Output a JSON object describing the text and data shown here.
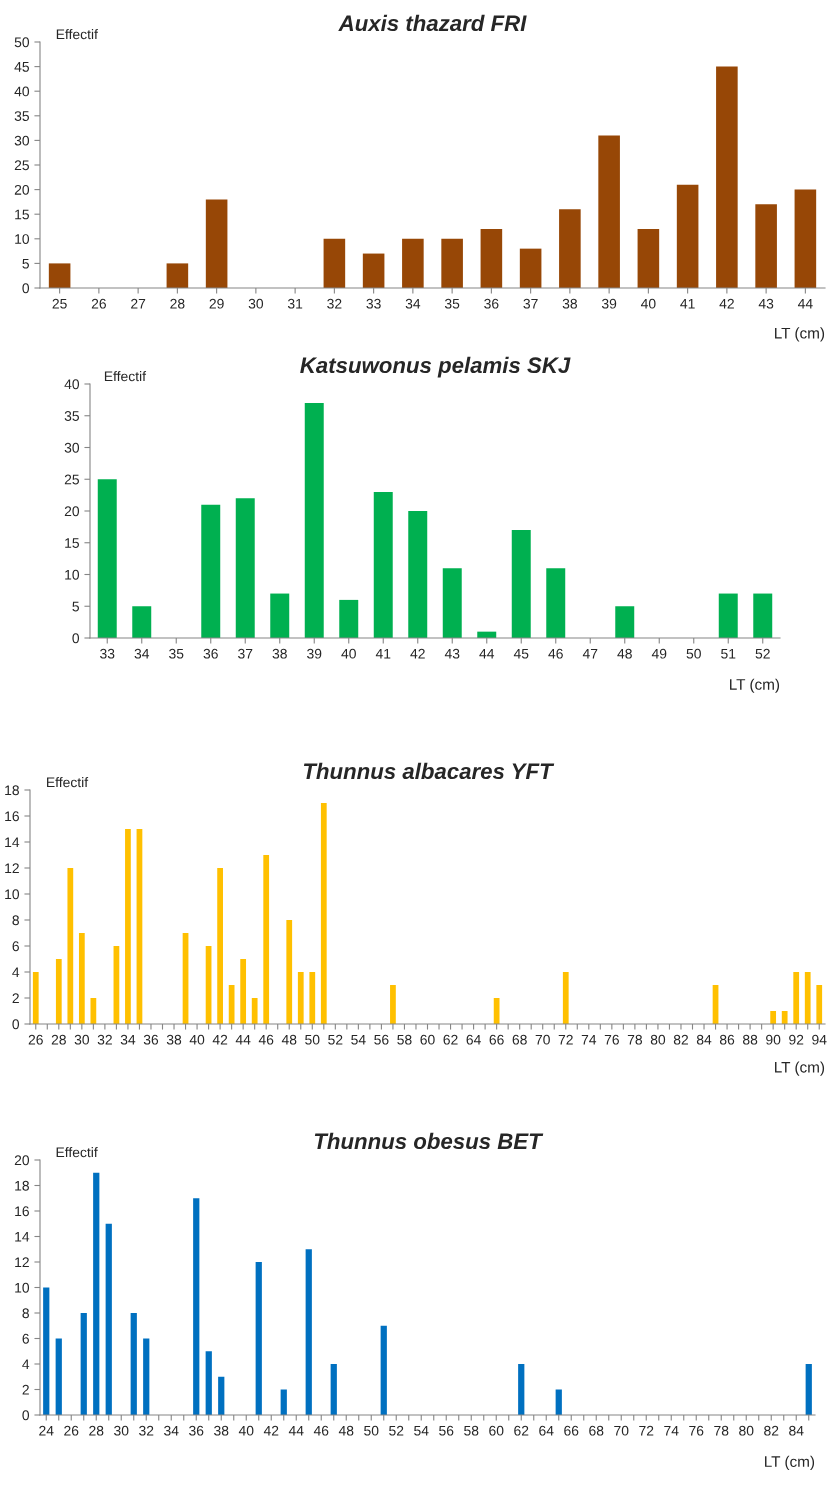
{
  "chart_data": [
    {
      "type": "bar",
      "title": "Auxis thazard FRI",
      "xlabel": "LT (cm)",
      "ylabel": "Effectif",
      "color": "#974706",
      "categories": [
        "25",
        "26",
        "27",
        "28",
        "29",
        "30",
        "31",
        "32",
        "33",
        "34",
        "35",
        "36",
        "37",
        "38",
        "39",
        "40",
        "41",
        "42",
        "43",
        "44"
      ],
      "values": [
        5,
        0,
        0,
        5,
        18,
        0,
        0,
        10,
        7,
        10,
        10,
        12,
        8,
        16,
        31,
        12,
        21,
        45,
        17,
        20
      ],
      "ylim": [
        0,
        50
      ],
      "yticks": [
        0,
        5,
        10,
        15,
        20,
        25,
        30,
        35,
        40,
        45,
        50
      ],
      "grid": false,
      "legend": false
    },
    {
      "type": "bar",
      "title": "Katsuwonus pelamis SKJ",
      "xlabel": "LT (cm)",
      "ylabel": "Effectif",
      "color": "#00b050",
      "categories": [
        "33",
        "34",
        "35",
        "36",
        "37",
        "38",
        "39",
        "40",
        "41",
        "42",
        "43",
        "44",
        "45",
        "46",
        "47",
        "48",
        "49",
        "50",
        "51",
        "52"
      ],
      "values": [
        25,
        5,
        0,
        21,
        22,
        7,
        37,
        6,
        23,
        20,
        11,
        1,
        17,
        11,
        0,
        5,
        0,
        0,
        7,
        7
      ],
      "ylim": [
        0,
        40
      ],
      "yticks": [
        0,
        5,
        10,
        15,
        20,
        25,
        30,
        35,
        40
      ],
      "grid": false,
      "legend": false
    },
    {
      "type": "bar",
      "title": "Thunnus albacares YFT",
      "xlabel": "LT (cm)",
      "ylabel": "Effectif",
      "color": "#ffc000",
      "categories": [
        "26",
        null,
        "28",
        null,
        "30",
        null,
        "32",
        null,
        "34",
        null,
        "36",
        null,
        "38",
        null,
        "40",
        null,
        "42",
        null,
        "44",
        null,
        "46",
        null,
        "48",
        null,
        "50",
        null,
        "52",
        null,
        "54",
        null,
        "56",
        null,
        "58",
        null,
        "60",
        null,
        "62",
        null,
        "64",
        null,
        "66",
        null,
        "68",
        null,
        "70",
        null,
        "72",
        null,
        "74",
        null,
        "76",
        null,
        "78",
        null,
        "80",
        null,
        "82",
        null,
        "84",
        null,
        "86",
        null,
        "88",
        null,
        "90",
        null,
        "92",
        null,
        "94"
      ],
      "values": [
        4,
        0,
        5,
        12,
        7,
        2,
        0,
        6,
        15,
        15,
        0,
        0,
        0,
        7,
        0,
        6,
        12,
        3,
        5,
        2,
        13,
        0,
        8,
        4,
        4,
        17,
        0,
        0,
        0,
        0,
        0,
        3,
        0,
        0,
        0,
        0,
        0,
        0,
        0,
        0,
        2,
        0,
        0,
        0,
        0,
        0,
        4,
        0,
        0,
        0,
        0,
        0,
        0,
        0,
        0,
        0,
        0,
        0,
        0,
        3,
        0,
        0,
        0,
        0,
        1,
        1,
        4,
        4,
        3
      ],
      "ylim": [
        0,
        18
      ],
      "yticks": [
        0,
        2,
        4,
        6,
        8,
        10,
        12,
        14,
        16,
        18
      ],
      "grid": false,
      "legend": false
    },
    {
      "type": "bar",
      "title": "Thunnus obesus BET",
      "xlabel": "LT (cm)",
      "ylabel": "Effectif",
      "color": "#0070c0",
      "categories": [
        "24",
        null,
        "26",
        null,
        "28",
        null,
        "30",
        null,
        "32",
        null,
        "34",
        null,
        "36",
        null,
        "38",
        null,
        "40",
        null,
        "42",
        null,
        "44",
        null,
        "46",
        null,
        "48",
        null,
        "50",
        null,
        "52",
        null,
        "54",
        null,
        "56",
        null,
        "58",
        null,
        "60",
        null,
        "62",
        null,
        "64",
        null,
        "66",
        null,
        "68",
        null,
        "70",
        null,
        "72",
        null,
        "74",
        null,
        "76",
        null,
        "78",
        null,
        "80",
        null,
        "82",
        null,
        "84",
        null
      ],
      "values": [
        10,
        6,
        0,
        8,
        19,
        15,
        0,
        8,
        6,
        0,
        0,
        0,
        17,
        5,
        3,
        0,
        0,
        12,
        0,
        2,
        0,
        13,
        0,
        4,
        0,
        0,
        0,
        7,
        0,
        0,
        0,
        0,
        0,
        0,
        0,
        0,
        0,
        0,
        4,
        0,
        0,
        2,
        0,
        0,
        0,
        0,
        0,
        0,
        0,
        0,
        0,
        0,
        0,
        0,
        0,
        0,
        0,
        0,
        0,
        0,
        0,
        4
      ],
      "ylim": [
        0,
        20
      ],
      "yticks": [
        0,
        2,
        4,
        6,
        8,
        10,
        12,
        14,
        16,
        18,
        20
      ],
      "grid": false,
      "legend": false
    }
  ]
}
